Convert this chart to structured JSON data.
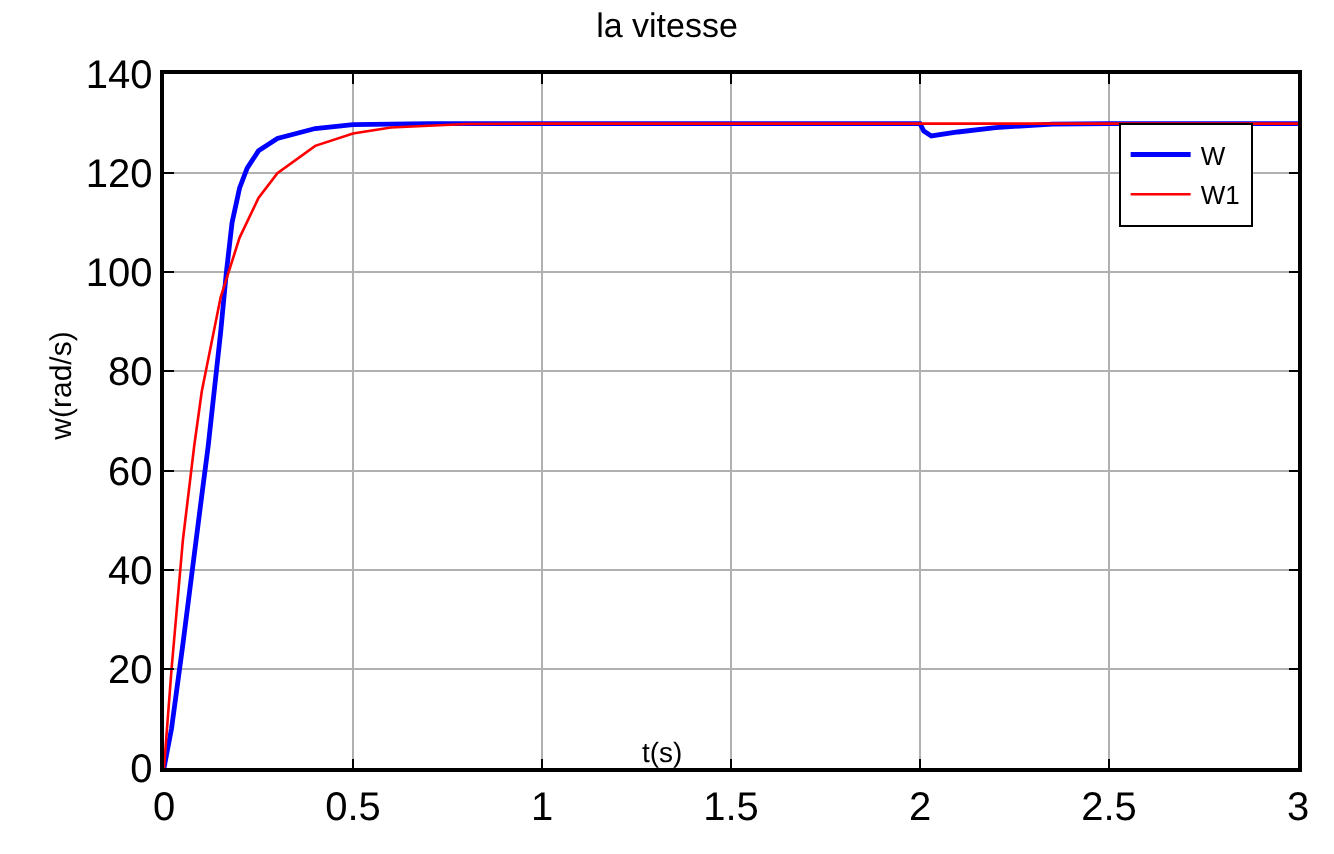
{
  "chart_data": {
    "type": "line",
    "title": "la vitesse",
    "xlabel": "t(s)",
    "ylabel": "w(rad/s)",
    "xlim": [
      0,
      3
    ],
    "xticks": [
      0,
      0.5,
      1,
      1.5,
      2,
      2.5,
      3
    ],
    "ylim": [
      0,
      140
    ],
    "yticks": [
      0,
      20,
      40,
      60,
      80,
      100,
      120,
      140
    ],
    "grid": true,
    "legend": "top right",
    "line_style": "solid",
    "series": [
      {
        "name": "W",
        "color": "#0000ff",
        "x": [
          0,
          0.02,
          0.05,
          0.1,
          0.117,
          0.15,
          0.165,
          0.18,
          0.2,
          0.22,
          0.25,
          0.3,
          0.4,
          0.5,
          0.7,
          2.0,
          2.01,
          2.03,
          2.1,
          2.2,
          2.35,
          2.5,
          3
        ],
        "values": [
          0,
          8,
          25,
          55,
          65,
          88,
          100,
          110,
          117,
          121,
          124.5,
          127,
          129,
          129.8,
          130,
          130,
          128.5,
          127.5,
          128.3,
          129.2,
          129.9,
          130,
          130
        ]
      },
      {
        "name": "W1",
        "color": "#ff0000",
        "x": [
          0,
          0.02,
          0.05,
          0.08,
          0.1,
          0.15,
          0.2,
          0.25,
          0.3,
          0.4,
          0.5,
          0.6,
          0.8,
          1,
          2,
          3
        ],
        "values": [
          0,
          20,
          46,
          65,
          76,
          95,
          107,
          115,
          120,
          125.5,
          128,
          129.2,
          129.9,
          130,
          130,
          130
        ]
      }
    ]
  }
}
